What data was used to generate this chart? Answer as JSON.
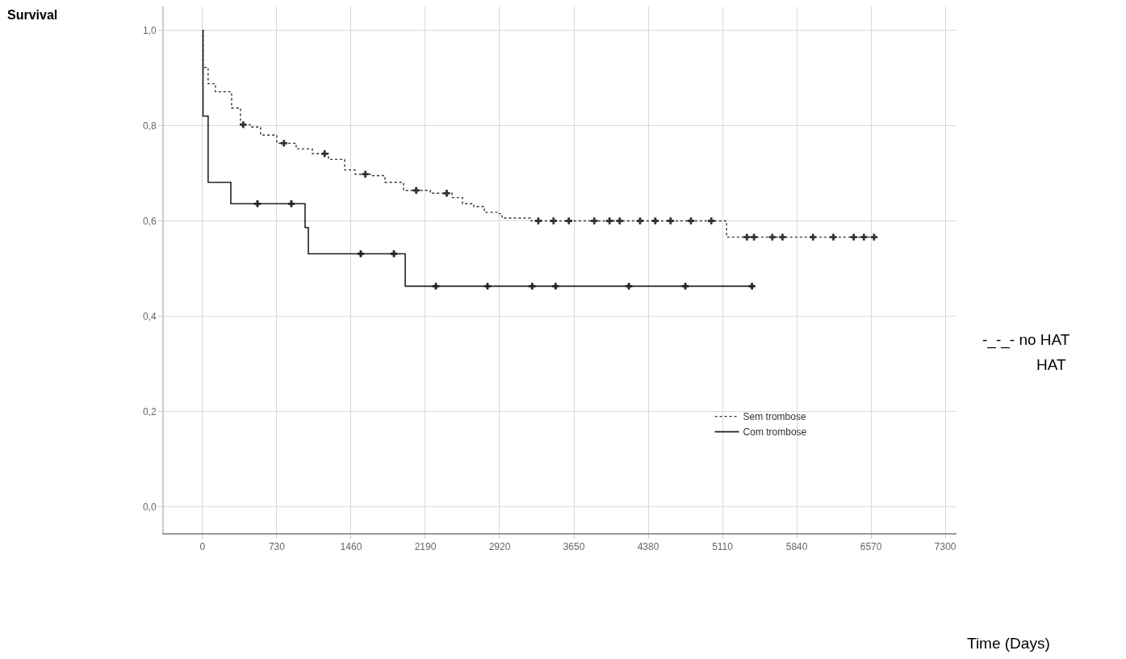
{
  "chart_data": {
    "type": "step",
    "xlim": [
      -380,
      7410
    ],
    "ylim": [
      -0.055,
      1.05
    ],
    "xticks": [
      0,
      730,
      1460,
      2190,
      2920,
      3650,
      4380,
      5110,
      5840,
      6570,
      7300
    ],
    "yticks": [
      {
        "value": 0,
        "label": "0,0"
      },
      {
        "value": 0.2,
        "label": "0,2"
      },
      {
        "value": 0.4,
        "label": "0,4"
      },
      {
        "value": 0.6,
        "label": "0,6"
      },
      {
        "value": 0.8,
        "label": "0,8"
      },
      {
        "value": 1.0,
        "label": "1,0"
      }
    ],
    "grid": true,
    "legend": "bottom right",
    "annotations": [
      "Survival",
      "-_-_- no HAT",
      "HAT",
      "Time (Days)"
    ],
    "series": [
      {
        "name": "Sem trombose",
        "color": "#333333",
        "line_style": "dotted",
        "x": [
          0,
          5,
          55,
          127,
          286,
          373,
          468,
          571,
          730,
          920,
          1079,
          1238,
          1397,
          1500,
          1658,
          1793,
          1976,
          2238,
          2452,
          2555,
          2666,
          2770,
          2904,
          2944,
          3190,
          3230,
          5150,
          6634
        ],
        "values": [
          1.0,
          0.922,
          0.888,
          0.871,
          0.837,
          0.802,
          0.797,
          0.78,
          0.763,
          0.751,
          0.741,
          0.729,
          0.707,
          0.698,
          0.695,
          0.681,
          0.664,
          0.658,
          0.649,
          0.636,
          0.63,
          0.618,
          0.615,
          0.606,
          0.606,
          0.6,
          0.566,
          0.566
        ]
      },
      {
        "name": "Com trombose",
        "color": "#222222",
        "line_style": "solid",
        "x": [
          0,
          5,
          55,
          278,
          1008,
          1040,
          1992,
          5400
        ],
        "values": [
          1.0,
          0.82,
          0.681,
          0.636,
          0.586,
          0.531,
          0.463,
          0.463
        ]
      },
      {
        "type": "scatter",
        "marker": "cross",
        "color": "#333333",
        "x": [
          400,
          800,
          1200,
          1600,
          2100,
          2400,
          3300,
          3450,
          3600,
          3850,
          4000,
          4100,
          4300,
          4450,
          4600,
          4800,
          5000,
          5350,
          5420,
          5600,
          5700,
          6000,
          6200,
          6400,
          6500,
          6600
        ],
        "values": [
          0.802,
          0.763,
          0.741,
          0.698,
          0.664,
          0.658,
          0.6,
          0.6,
          0.6,
          0.6,
          0.6,
          0.6,
          0.6,
          0.6,
          0.6,
          0.6,
          0.6,
          0.566,
          0.566,
          0.566,
          0.566,
          0.566,
          0.566,
          0.566,
          0.566,
          0.566
        ]
      },
      {
        "type": "scatter",
        "marker": "cross",
        "color": "#222222",
        "x": [
          540,
          873,
          1555,
          1881,
          2293,
          2801,
          3240,
          3470,
          4190,
          4745,
          5400
        ],
        "values": [
          0.636,
          0.636,
          0.531,
          0.531,
          0.463,
          0.463,
          0.463,
          0.463,
          0.463,
          0.463,
          0.463
        ]
      }
    ]
  }
}
